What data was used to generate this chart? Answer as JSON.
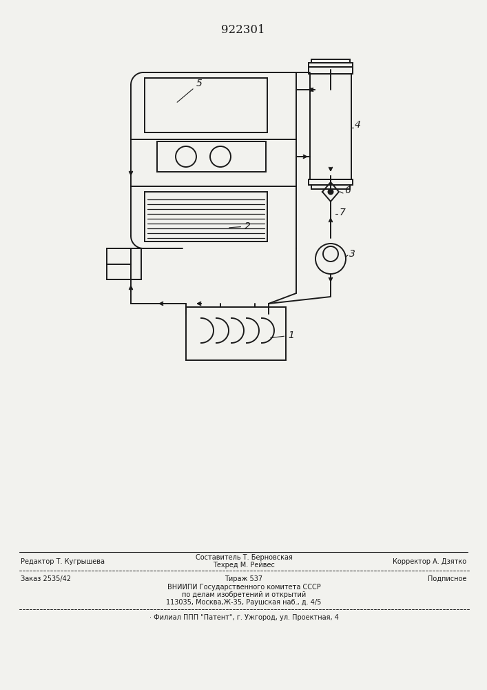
{
  "title": "922301",
  "bg_color": "#f2f2ee",
  "line_color": "#1a1a1a",
  "footer_editor": "Редактор Т. Кугрышева",
  "footer_composer": "Составитель Т. Берновская",
  "footer_techred": "Техред М. Рейвес",
  "footer_corrector": "Корректор А. Дзятко",
  "footer_order": "Заказ 2535/42",
  "footer_tirazh": "Тираж 537",
  "footer_podp": "Подписное",
  "footer_vniip1": "ВНИИПИ Государственного комитета СССР",
  "footer_vniip2": "по делам изобретений и открытий",
  "footer_vniip3": "113035, Москва,Ж-35, Раушская наб., д. 4/5",
  "footer_patent": "· Филиал ППП \"Патент\", г. Ужгород, ул. Проектная, 4"
}
